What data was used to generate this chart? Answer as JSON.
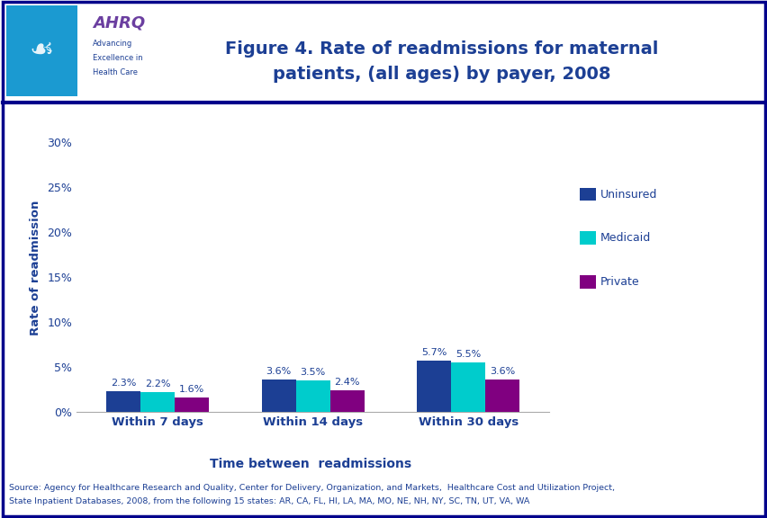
{
  "title_line1": "Figure 4. Rate of readmissions for maternal",
  "title_line2": "patients, (all ages) by payer, 2008",
  "xlabel": "Time between  readmissions",
  "ylabel": "Rate of readmission",
  "categories": [
    "Within 7 days",
    "Within 14 days",
    "Within 30 days"
  ],
  "series": [
    {
      "label": "Uninsured",
      "color": "#1C3F94",
      "values": [
        2.3,
        3.6,
        5.7
      ]
    },
    {
      "label": "Medicaid",
      "color": "#00CCCC",
      "values": [
        2.2,
        3.5,
        5.5
      ]
    },
    {
      "label": "Private",
      "color": "#800080",
      "values": [
        1.6,
        2.4,
        3.6
      ]
    }
  ],
  "ylim": [
    0,
    32
  ],
  "yticks": [
    0,
    5,
    10,
    15,
    20,
    25,
    30
  ],
  "ytick_labels": [
    "0%",
    "5%",
    "10%",
    "15%",
    "20%",
    "25%",
    "30%"
  ],
  "title_color": "#1C3F94",
  "title_fontsize": 14,
  "axis_label_color": "#1C3F94",
  "tick_label_color": "#1C3F94",
  "legend_label_color": "#1C3F94",
  "bar_width": 0.22,
  "source_text_line1": "Source: Agency for Healthcare Research and Quality, Center for Delivery, Organization, and Markets,  Healthcare Cost and Utilization Project,",
  "source_text_line2": "State Inpatient Databases, 2008, from the following 15 states: AR, CA, FL, HI, LA, MA, MO, NE, NH, NY, SC, TN, UT, VA, WA",
  "header_line_color": "#00008B",
  "bg_color": "#FFFFFF",
  "plot_bg_color": "#FFFFFF",
  "border_color": "#00008B",
  "hhs_blue": "#1B9AD1",
  "logo_border_color": "#00008B",
  "annotation_fontsize": 8
}
